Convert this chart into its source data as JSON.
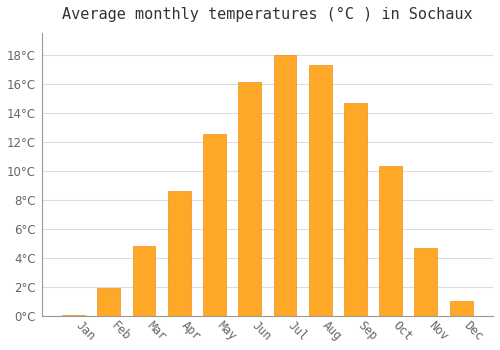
{
  "title": "Average monthly temperatures (°C ) in Sochaux",
  "months": [
    "Jan",
    "Feb",
    "Mar",
    "Apr",
    "May",
    "Jun",
    "Jul",
    "Aug",
    "Sep",
    "Oct",
    "Nov",
    "Dec"
  ],
  "values": [
    0.1,
    1.9,
    4.8,
    8.6,
    12.5,
    16.1,
    18.0,
    17.3,
    14.7,
    10.3,
    4.7,
    1.0
  ],
  "bar_color": "#FFA726",
  "bar_edge_color": "#E69320",
  "background_color": "#FFFFFF",
  "plot_bg_color": "#FFFFFF",
  "grid_color": "#DDDDDD",
  "ylim": [
    0,
    19.5
  ],
  "yticks": [
    0,
    2,
    4,
    6,
    8,
    10,
    12,
    14,
    16,
    18
  ],
  "title_fontsize": 11,
  "tick_fontsize": 8.5,
  "tick_label_color": "#666666",
  "figsize": [
    5.0,
    3.5
  ],
  "dpi": 100
}
